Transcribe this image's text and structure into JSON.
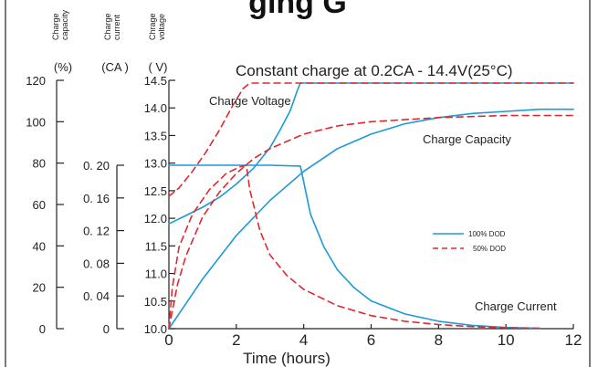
{
  "header_fragment": "ging G",
  "chart_data": {
    "type": "line",
    "title": "Constant charge at 0.2CA - 14.4V(25°C)",
    "xlabel": "Time (hours)",
    "xlim": [
      0,
      12
    ],
    "x_ticks": [
      "0",
      "2",
      "4",
      "6",
      "8",
      "10",
      "12"
    ],
    "axes": {
      "capacity": {
        "label_lines": [
          "Charge",
          "capacity"
        ],
        "unit": "(%)",
        "ticks": [
          "0",
          "20",
          "40",
          "60",
          "80",
          "100",
          "120"
        ],
        "range": [
          0,
          120
        ]
      },
      "current": {
        "label_lines": [
          "Charge",
          "current"
        ],
        "unit": "(CA )",
        "ticks": [
          "0",
          "0. 04",
          "0. 08",
          "0. 12",
          "0. 16",
          "0. 20"
        ],
        "range": [
          0,
          0.2
        ]
      },
      "voltage": {
        "label_lines": [
          "Chrage",
          "voltage"
        ],
        "unit": "(  V)",
        "ticks": [
          "10.0",
          "10.5",
          "11.0",
          "11.5",
          "12.0",
          "12.5",
          "13.0",
          "13.5",
          "14.0",
          "14.5"
        ],
        "range": [
          10.0,
          14.5
        ]
      }
    },
    "annotations": {
      "voltage": "Charge Voltage",
      "capacity": "Charge Capacity",
      "current": "Charge Current"
    },
    "legend": {
      "placement": "center-right",
      "entries": [
        {
          "label": "100% DOD",
          "color": "#1b9ad6",
          "style": "solid"
        },
        {
          "label": "50% DOD",
          "color": "#e0282e",
          "style": "dashed"
        }
      ]
    },
    "series": [
      {
        "quantity": "voltage",
        "dod": "100% DOD",
        "axis": "voltage",
        "color": "#1b9ad6",
        "dash": false,
        "x": [
          0,
          0.5,
          1,
          1.5,
          2,
          2.5,
          3,
          3.3,
          3.6,
          3.8,
          3.9,
          4,
          6,
          8,
          10,
          12
        ],
        "y": [
          11.9,
          12.05,
          12.2,
          12.38,
          12.62,
          12.9,
          13.28,
          13.6,
          13.95,
          14.3,
          14.45,
          14.45,
          14.45,
          14.45,
          14.45,
          14.45
        ]
      },
      {
        "quantity": "voltage",
        "dod": "50% DOD",
        "axis": "voltage",
        "color": "#e0282e",
        "dash": true,
        "x": [
          0,
          0.3,
          0.7,
          1.1,
          1.5,
          1.9,
          2.2,
          2.4,
          2.5,
          4,
          6,
          8,
          10,
          12
        ],
        "y": [
          12.4,
          12.55,
          12.85,
          13.2,
          13.6,
          14.05,
          14.35,
          14.45,
          14.45,
          14.45,
          14.45,
          14.45,
          14.45,
          14.45
        ]
      },
      {
        "quantity": "capacity",
        "dod": "100% DOD",
        "axis": "capacity",
        "color": "#1b9ad6",
        "dash": false,
        "x": [
          0,
          0.5,
          1,
          2,
          3,
          4,
          5,
          6,
          7,
          8,
          9,
          10,
          11,
          12
        ],
        "y": [
          0,
          12,
          24,
          45,
          62,
          76,
          87,
          94,
          99,
          102,
          104,
          105,
          106,
          106
        ]
      },
      {
        "quantity": "capacity",
        "dod": "50% DOD",
        "axis": "capacity",
        "color": "#e0282e",
        "dash": true,
        "x": [
          0,
          0.25,
          0.5,
          1,
          1.5,
          2,
          2.5,
          3,
          4,
          5,
          6,
          7,
          8,
          10,
          12
        ],
        "y": [
          0,
          21,
          35,
          54,
          66,
          75,
          82,
          87,
          94,
          98,
          100,
          101,
          102,
          103,
          103
        ]
      },
      {
        "quantity": "current",
        "dod": "100% DOD",
        "axis": "current",
        "color": "#1b9ad6",
        "dash": false,
        "x": [
          0,
          1,
          2,
          3,
          3.9,
          4.2,
          4.6,
          5,
          5.5,
          6,
          7,
          8,
          9,
          10,
          11
        ],
        "y": [
          0.2,
          0.2,
          0.2,
          0.2,
          0.199,
          0.14,
          0.1,
          0.072,
          0.05,
          0.034,
          0.018,
          0.009,
          0.004,
          0.0015,
          0.0005
        ]
      },
      {
        "quantity": "current",
        "dod": "50% DOD",
        "axis": "current",
        "color": "#e0282e",
        "dash": true,
        "x": [
          0,
          0.1,
          0.3,
          0.7,
          1.2,
          1.7,
          2.1,
          2.3,
          2.4,
          2.7,
          3,
          3.5,
          4,
          5,
          6,
          7,
          8,
          9,
          10,
          11
        ],
        "y": [
          0,
          0.05,
          0.1,
          0.14,
          0.17,
          0.19,
          0.198,
          0.2,
          0.17,
          0.12,
          0.09,
          0.065,
          0.048,
          0.028,
          0.016,
          0.009,
          0.005,
          0.0025,
          0.001,
          0.0005
        ]
      }
    ]
  }
}
